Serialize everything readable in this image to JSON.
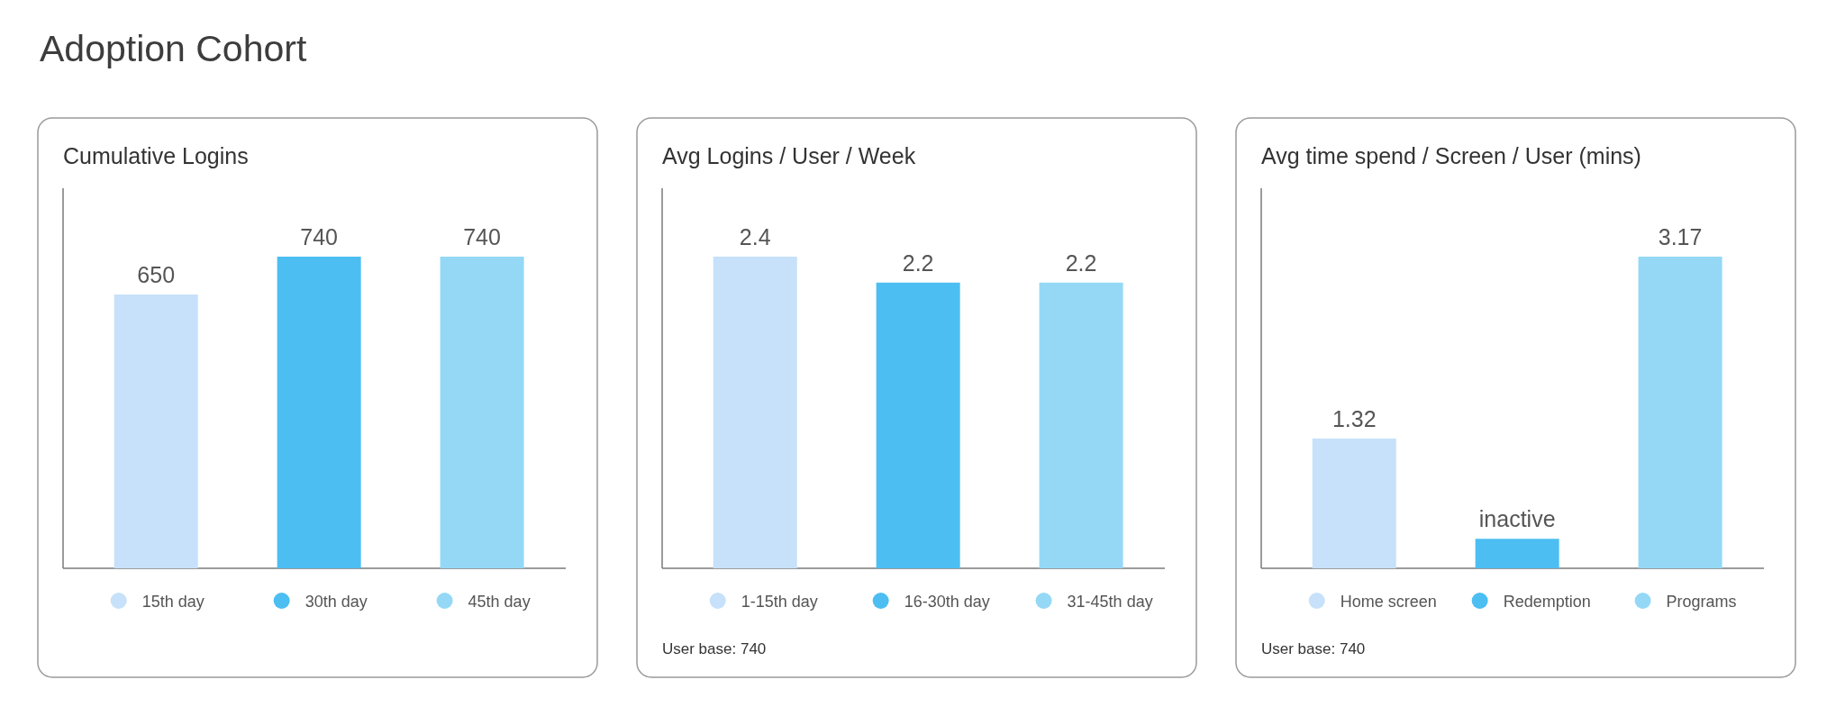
{
  "chart_data": [
    {
      "type": "bar",
      "title": "Adoption Cohort",
      "subtitle": "Cumulative Logins",
      "categories": [
        null,
        null,
        null
      ],
      "stacked": true,
      "series": [
        {
          "name": "15th day",
          "color": "#c6e1f9",
          "values": [
            650,
            null,
            null
          ]
        },
        {
          "name": "30th day",
          "color": "#4cbef2",
          "values": [
            null,
            740,
            null
          ]
        },
        {
          "name": "45th day",
          "color": "#94d8f6",
          "values": [
            null,
            null,
            740
          ]
        }
      ],
      "data_labels": true,
      "legend": "bottom"
    },
    {
      "type": "bar",
      "title": "Avg Logins / User / Week",
      "categories": [
        null,
        null,
        null
      ],
      "stacked": true,
      "series": [
        {
          "name": "1-15th day",
          "color": "#c6e1f9",
          "values": [
            2.4,
            null,
            null
          ]
        },
        {
          "name": "16-30th day",
          "color": "#4cbef2",
          "values": [
            null,
            2.2,
            null
          ]
        },
        {
          "name": "31-45th day",
          "color": "#94d8f6",
          "values": [
            null,
            null,
            2.2
          ]
        }
      ],
      "data_labels": true,
      "legend": "bottom",
      "annotations": [
        "User base: 740"
      ]
    },
    {
      "type": "bar",
      "title": "Avg time spend / Screen / User (mins)",
      "categories": [
        null,
        null,
        null
      ],
      "stacked": true,
      "series": [
        {
          "name": "Home screen",
          "color": "#c6e1f9",
          "values": [
            1.32,
            null,
            null
          ],
          "value_labels": [
            "1.32",
            null,
            null
          ]
        },
        {
          "name": "Redemption",
          "color": "#4cbef2",
          "values": [
            null,
            0.3,
            null
          ],
          "value_labels": [
            null,
            "inactive",
            null
          ]
        },
        {
          "name": "Programs",
          "color": "#94d8f6",
          "values": [
            null,
            null,
            3.17
          ],
          "value_labels": [
            null,
            null,
            "3.17"
          ]
        }
      ],
      "legend": "bottom",
      "annotations": [
        "User base: 740"
      ]
    }
  ]
}
